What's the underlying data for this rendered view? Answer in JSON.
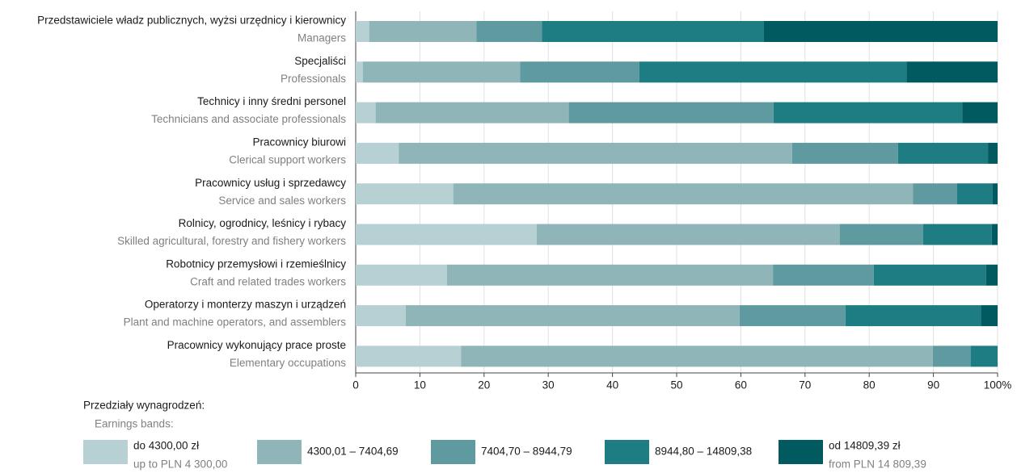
{
  "chart_data": {
    "type": "stacked-bar-horizontal",
    "categories": [
      {
        "pl": "Przedstawiciele władz publicznych, wyżsi urzędnicy i kierownicy",
        "en": "Managers"
      },
      {
        "pl": "Specjaliści",
        "en": "Professionals"
      },
      {
        "pl": "Technicy i inny średni personel",
        "en": "Technicians and associate professionals"
      },
      {
        "pl": "Pracownicy biurowi",
        "en": "Clerical support workers"
      },
      {
        "pl": "Pracownicy usług i sprzedawcy",
        "en": "Service and sales workers"
      },
      {
        "pl": "Rolnicy, ogrodnicy, leśnicy i rybacy",
        "en": "Skilled agricultural, forestry and fishery workers"
      },
      {
        "pl": "Robotnicy przemysłowi i rzemieślnicy",
        "en": "Craft and related trades workers"
      },
      {
        "pl": "Operatorzy i monterzy maszyn i urządzeń",
        "en": "Plant and machine operators, and assemblers"
      },
      {
        "pl": "Pracownicy wykonujący prace proste",
        "en": "Elementary occupations"
      }
    ],
    "series": [
      {
        "name": "do 4300,00 zł",
        "name_en": "up to PLN 4 300,00",
        "color": "#b6d0d3",
        "values": [
          2.1,
          1.1,
          3.1,
          6.7,
          15.2,
          28.2,
          14.2,
          7.8,
          16.4
        ]
      },
      {
        "name": "4300,01 – 7404,69",
        "color": "#8fb5b9",
        "values": [
          16.7,
          24.5,
          30.1,
          61.3,
          71.6,
          47.2,
          50.8,
          52.0,
          73.5
        ]
      },
      {
        "name": "7404,70 – 8944,79",
        "color": "#5e9aa0",
        "values": [
          10.2,
          18.6,
          31.9,
          16.5,
          6.9,
          13.0,
          15.7,
          16.5,
          5.9
        ]
      },
      {
        "name": "8944,80 – 14809,38",
        "color": "#1e7d82",
        "values": [
          34.6,
          41.6,
          29.4,
          14.0,
          5.5,
          10.7,
          17.5,
          21.1,
          4.2
        ]
      },
      {
        "name": "od 14809,39 zł",
        "name_en": "from PLN 14 809,39",
        "color": "#005a5f",
        "values": [
          36.4,
          14.2,
          5.5,
          1.5,
          0.8,
          0.9,
          1.8,
          2.6,
          0
        ]
      }
    ],
    "xlim": [
      0,
      100
    ],
    "xticks": [
      0,
      10,
      20,
      30,
      40,
      50,
      60,
      70,
      80,
      90,
      {
        "value": 100,
        "label": "100%"
      }
    ],
    "legend_title": "Przedziały wynagrodzeń:",
    "legend_title_en": "Earnings bands:"
  }
}
